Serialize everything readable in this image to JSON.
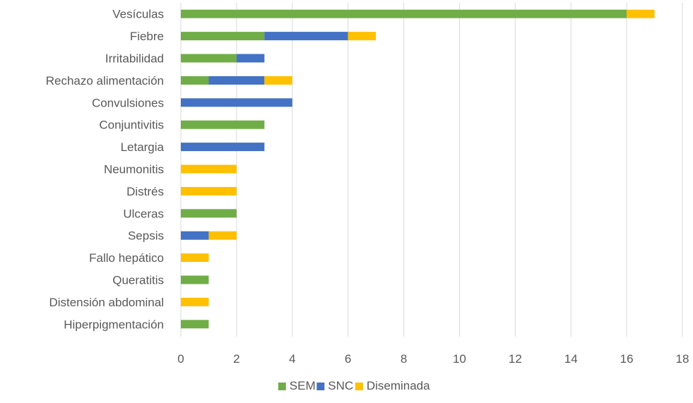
{
  "chart_data": {
    "type": "bar",
    "orientation": "horizontal",
    "stacked": true,
    "categories": [
      "Vesículas",
      "Fiebre",
      "Irritabilidad",
      "Rechazo alimentación",
      "Convulsiones",
      "Conjuntivitis",
      "Letargia",
      "Neumonitis",
      "Distrés",
      "Ulceras",
      "Sepsis",
      "Fallo hepático",
      "Queratitis",
      "Distensión abdominal",
      "Hiperpigmentación"
    ],
    "series": [
      {
        "name": "SEM",
        "color": "#70AD47",
        "values": [
          16,
          3,
          2,
          1,
          0,
          3,
          0,
          0,
          0,
          2,
          0,
          0,
          1,
          0,
          1
        ]
      },
      {
        "name": "SNC",
        "color": "#4472C4",
        "values": [
          0,
          3,
          1,
          2,
          4,
          0,
          3,
          0,
          0,
          0,
          1,
          0,
          0,
          0,
          0
        ]
      },
      {
        "name": "Diseminada",
        "color": "#FFC000",
        "values": [
          1,
          1,
          0,
          1,
          0,
          0,
          0,
          2,
          2,
          0,
          1,
          1,
          0,
          1,
          0
        ]
      }
    ],
    "xlim": [
      0,
      18
    ],
    "xticks": [
      "0",
      "2",
      "4",
      "6",
      "8",
      "10",
      "12",
      "14",
      "16",
      "18"
    ],
    "grid": true,
    "grid_color": "#D9D9D9",
    "legend": "bottom",
    "title": "",
    "xlabel": "",
    "ylabel": ""
  }
}
